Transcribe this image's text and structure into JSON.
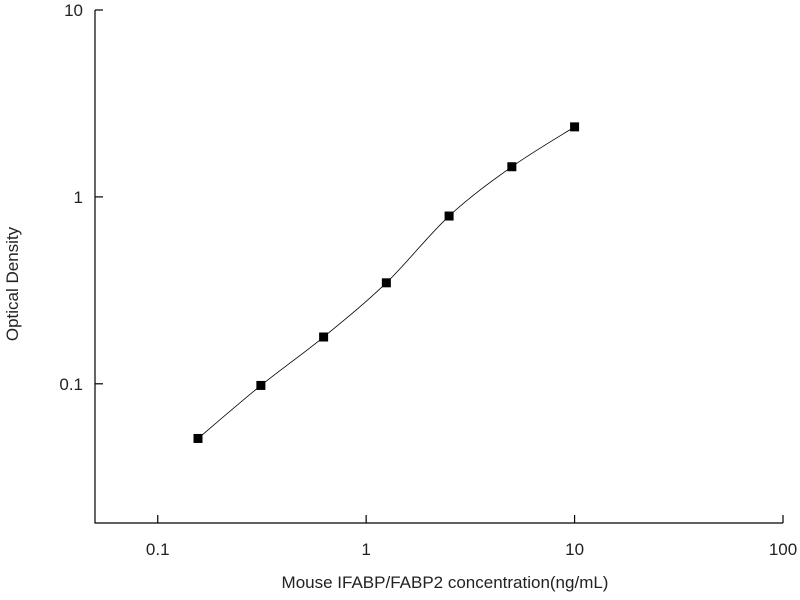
{
  "chart_data": {
    "type": "scatter",
    "x_label": "Mouse IFABP/FABP2 concentration(ng/mL)",
    "y_label": "Optical Density",
    "x_scale": "log",
    "y_scale": "log",
    "xlim": [
      0.05,
      100
    ],
    "ylim": [
      0.018,
      10
    ],
    "xticks": [
      0.1,
      1,
      10,
      100
    ],
    "yticks": [
      0.1,
      1,
      10
    ],
    "grid": false,
    "fit_curve": true,
    "series": [
      {
        "color": "#000000",
        "x": [
          0.156,
          0.3125,
          0.625,
          1.25,
          2.5,
          5,
          10
        ],
        "values": [
          0.051,
          0.098,
          0.178,
          0.347,
          0.79,
          1.45,
          2.37
        ]
      }
    ]
  }
}
